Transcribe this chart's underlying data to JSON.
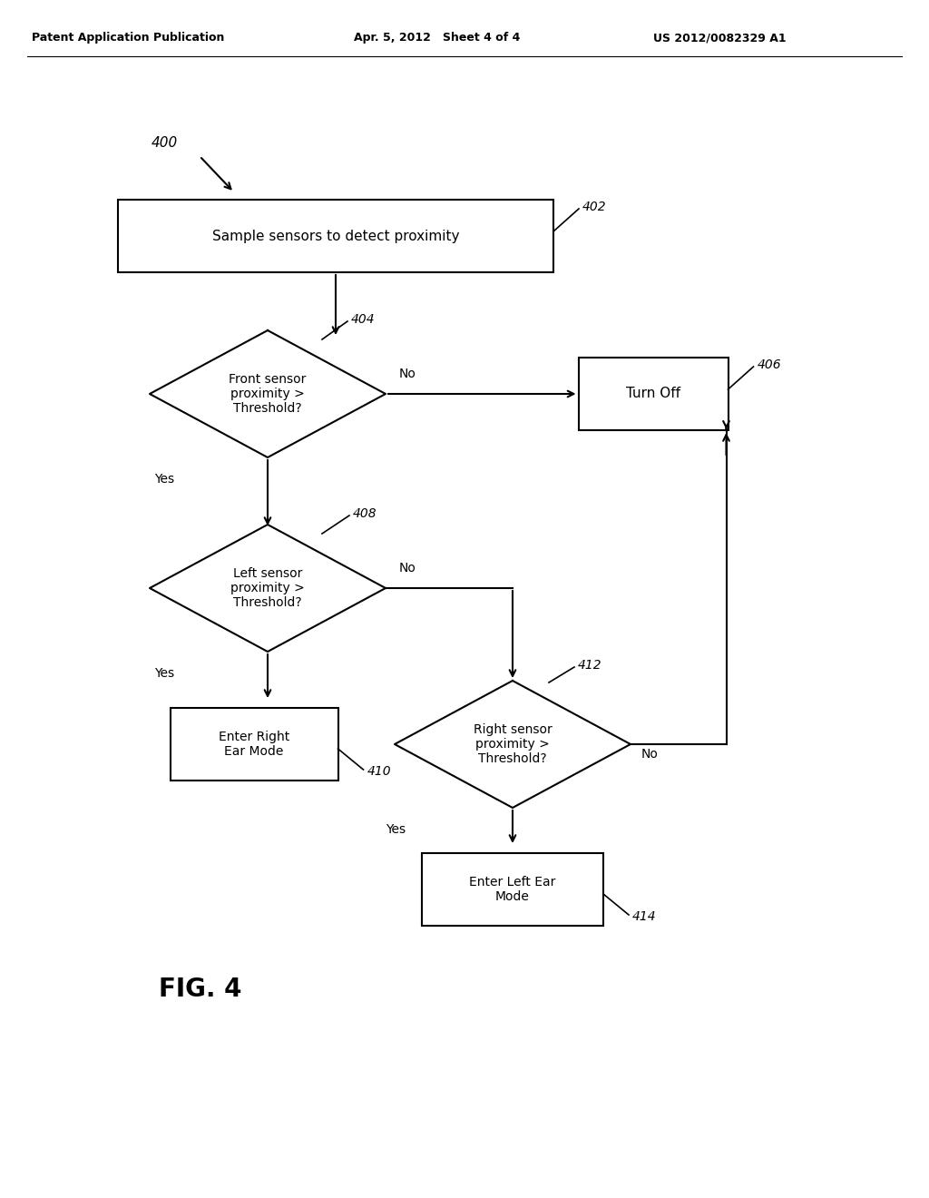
{
  "bg_color": "#ffffff",
  "header_left": "Patent Application Publication",
  "header_mid": "Apr. 5, 2012   Sheet 4 of 4",
  "header_right": "US 2012/0082329 A1",
  "fig_label": "FIG. 4",
  "box402_label": "Sample sensors to detect proximity",
  "box402_ref": "402",
  "d404_label": "Front sensor\nproximity >\nThreshold?",
  "d404_ref": "404",
  "box406_label": "Turn Off",
  "box406_ref": "406",
  "d408_label": "Left sensor\nproximity >\nThreshold?",
  "d408_ref": "408",
  "box410_label": "Enter Right\nEar Mode",
  "box410_ref": "410",
  "d412_label": "Right sensor\nproximity >\nThreshold?",
  "d412_ref": "412",
  "box414_label": "Enter Left Ear\nMode",
  "box414_ref": "414",
  "start_ref": "400"
}
